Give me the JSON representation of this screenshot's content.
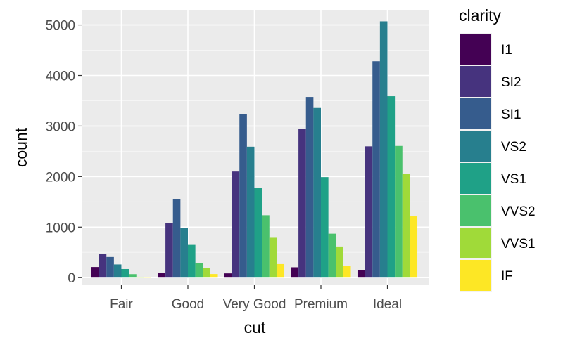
{
  "chart_data": {
    "type": "bar",
    "categories": [
      "Fair",
      "Good",
      "Very Good",
      "Premium",
      "Ideal"
    ],
    "xlabel": "cut",
    "ylabel": "count",
    "ylim": [
      0,
      5300
    ],
    "yticks": [
      0,
      1000,
      2000,
      3000,
      4000,
      5000
    ],
    "grid": true,
    "legend": {
      "title": "clarity",
      "placement": "right"
    },
    "series": [
      {
        "name": "I1",
        "color": "#440154",
        "values": [
          210,
          96,
          84,
          205,
          146
        ]
      },
      {
        "name": "SI2",
        "color": "#46337E",
        "values": [
          466,
          1081,
          2100,
          2949,
          2598
        ]
      },
      {
        "name": "SI1",
        "color": "#365C8D",
        "values": [
          408,
          1560,
          3240,
          3575,
          4282
        ]
      },
      {
        "name": "VS2",
        "color": "#277F8E",
        "values": [
          261,
          978,
          2591,
          3357,
          5071
        ]
      },
      {
        "name": "VS1",
        "color": "#1FA187",
        "values": [
          170,
          648,
          1775,
          1989,
          3589
        ]
      },
      {
        "name": "VVS2",
        "color": "#4AC16D",
        "values": [
          69,
          286,
          1235,
          870,
          2606
        ]
      },
      {
        "name": "VVS1",
        "color": "#A0DA39",
        "values": [
          17,
          186,
          789,
          616,
          2047
        ]
      },
      {
        "name": "IF",
        "color": "#FDE725",
        "values": [
          9,
          71,
          268,
          230,
          1212
        ]
      }
    ]
  }
}
